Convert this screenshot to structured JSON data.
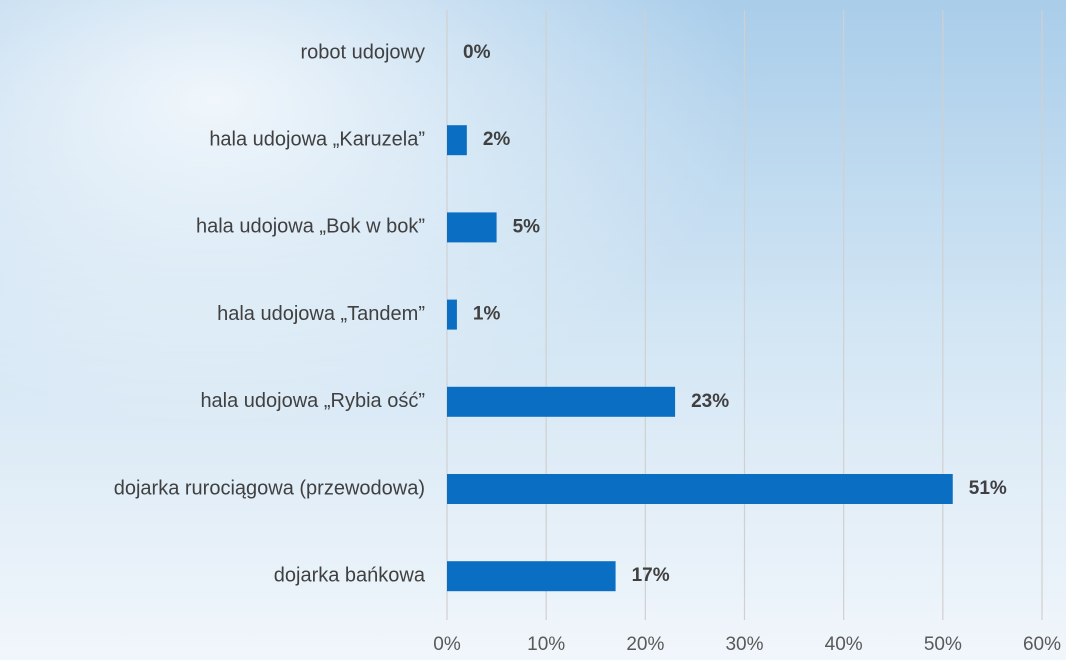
{
  "chart_data": {
    "type": "bar",
    "orientation": "horizontal",
    "categories": [
      "robot udojowy",
      "hala udojowa „Karuzela”",
      "hala udojowa „Bok w bok”",
      "hala udojowa „Tandem”",
      "hala udojowa „Rybia ość”",
      "dojarka rurociągowa (przewodowa)",
      "dojarka bańkowa"
    ],
    "values": [
      0,
      2,
      5,
      1,
      23,
      51,
      17
    ],
    "value_labels": [
      "0%",
      "2%",
      "5%",
      "1%",
      "23%",
      "51%",
      "17%"
    ],
    "color": "#0a6fc2",
    "xlim": [
      0,
      60
    ],
    "xticks": [
      {
        "value": 0,
        "label": "0%"
      },
      {
        "value": 10,
        "label": "10%"
      },
      {
        "value": 20,
        "label": "20%"
      },
      {
        "value": 30,
        "label": "30%"
      },
      {
        "value": 40,
        "label": "40%"
      },
      {
        "value": 50,
        "label": "50%"
      },
      {
        "value": 60,
        "label": "60%"
      }
    ],
    "grid": true
  }
}
